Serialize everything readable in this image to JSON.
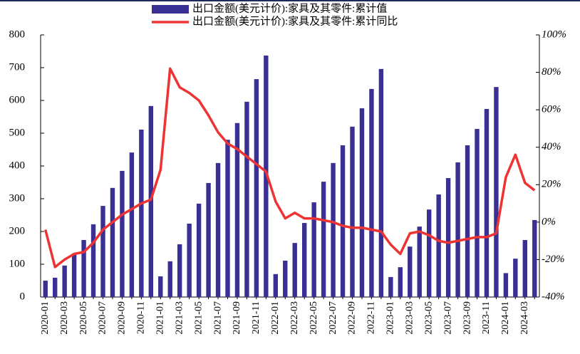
{
  "chart_data": {
    "type": "bar_line",
    "categories": [
      "2020-01",
      null,
      "2020-03",
      null,
      "2020-05",
      null,
      "2020-07",
      null,
      "2020-09",
      null,
      "2020-11",
      null,
      "2021-01",
      null,
      "2021-03",
      null,
      "2021-05",
      null,
      "2021-07",
      null,
      "2021-09",
      null,
      "2021-11",
      null,
      "2022-01",
      null,
      "2022-03",
      null,
      "2022-05",
      null,
      "2022-07",
      null,
      "2022-09",
      null,
      "2022-11",
      null,
      "2023-01",
      null,
      "2023-03",
      null,
      "2023-05",
      null,
      "2023-07",
      null,
      "2023-09",
      null,
      "2023-11",
      null,
      "2024-01",
      null,
      "2024-03",
      null
    ],
    "series": [
      {
        "name": "出口金额(美元计价):家具及其零件:累计值",
        "type": "bar",
        "color": "#3a3093",
        "values": [
          50,
          59,
          96,
          133,
          174,
          222,
          278,
          333,
          385,
          441,
          511,
          583,
          63,
          109,
          161,
          224,
          285,
          348,
          409,
          480,
          531,
          596,
          665,
          737,
          70,
          111,
          165,
          226,
          289,
          352,
          409,
          463,
          520,
          576,
          635,
          696,
          61,
          91,
          154,
          215,
          267,
          313,
          363,
          411,
          463,
          513,
          574,
          641,
          73,
          117,
          174,
          235
        ]
      },
      {
        "name": "出口金额(美元计价):家具及其零件:累计同比",
        "type": "line",
        "color": "#ee3333",
        "axis": "y2",
        "values": [
          -4,
          -24,
          -20,
          -17,
          -16,
          -11,
          -4,
          0,
          4,
          7,
          10,
          12,
          28,
          82,
          72,
          69,
          65,
          57,
          48,
          42,
          39,
          35,
          31,
          27,
          11,
          2,
          5,
          2,
          2,
          1,
          0,
          -2,
          -3,
          -3,
          -4,
          -5,
          -12,
          -17,
          -6,
          -5,
          -7,
          -10,
          -11,
          -10,
          -9,
          -8,
          -8,
          -6,
          24,
          36,
          21,
          17
        ]
      }
    ],
    "ylim": [
      0,
      800
    ],
    "yticks": [
      0,
      100,
      200,
      300,
      400,
      500,
      600,
      700,
      800
    ],
    "y2lim": [
      -40,
      100
    ],
    "y2ticks": [
      {
        "value": -40,
        "label": "-40%"
      },
      {
        "value": -20,
        "label": "-20%"
      },
      {
        "value": 0,
        "label": "0%"
      },
      {
        "value": 20,
        "label": "20%"
      },
      {
        "value": 40,
        "label": "40%"
      },
      {
        "value": 60,
        "label": "60%"
      },
      {
        "value": 80,
        "label": "80%"
      },
      {
        "value": 100,
        "label": "100%"
      }
    ],
    "legend": "top"
  }
}
